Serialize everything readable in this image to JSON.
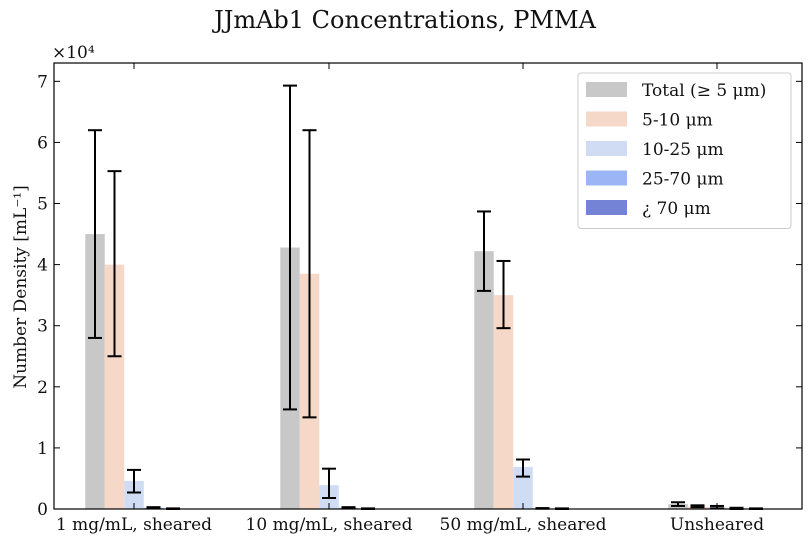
{
  "chart_data": {
    "type": "bar",
    "title": "JJmAb1 Concentrations, PMMA",
    "ylabel": "Number Density [mL⁻¹]",
    "xlabel": "",
    "y_multiplier": "×10⁴",
    "ylim": [
      0,
      7.3
    ],
    "yticks": [
      0,
      1,
      2,
      3,
      4,
      5,
      6,
      7
    ],
    "categories": [
      "1 mg/mL, sheared",
      "10 mg/mL, sheared",
      "50 mg/mL, sheared",
      "Unsheared"
    ],
    "legend_position": "top-right",
    "series": [
      {
        "name": "Total (≥ 5 μm)",
        "color": "#c8c8c8",
        "values": [
          4.5,
          4.28,
          4.22,
          0.08
        ],
        "err_low": [
          2.8,
          1.63,
          3.57,
          0.05
        ],
        "err_high": [
          6.2,
          6.93,
          4.87,
          0.11
        ]
      },
      {
        "name": "5-10 μm",
        "color": "#f5d8c8",
        "values": [
          4.0,
          3.85,
          3.5,
          0.04
        ],
        "err_low": [
          2.5,
          1.5,
          2.96,
          0.03
        ],
        "err_high": [
          5.53,
          6.2,
          4.06,
          0.06
        ]
      },
      {
        "name": "10-25 μm",
        "color": "#cfdcf3",
        "values": [
          0.46,
          0.39,
          0.69,
          0.03
        ],
        "err_low": [
          0.27,
          0.18,
          0.53,
          0.01
        ],
        "err_high": [
          0.64,
          0.66,
          0.81,
          0.05
        ]
      },
      {
        "name": "25-70 μm",
        "color": "#9bb5f5",
        "values": [
          0.02,
          0.02,
          0.01,
          0.01
        ],
        "err_low": [
          0.01,
          0.01,
          0.005,
          0.0
        ],
        "err_high": [
          0.03,
          0.03,
          0.015,
          0.02
        ]
      },
      {
        "name": "¿ 70 μm",
        "color": "#7583d7",
        "values": [
          0.005,
          0.005,
          0.005,
          0.005
        ],
        "err_low": [
          0.0,
          0.0,
          0.0,
          0.0
        ],
        "err_high": [
          0.01,
          0.01,
          0.01,
          0.01
        ]
      }
    ]
  }
}
